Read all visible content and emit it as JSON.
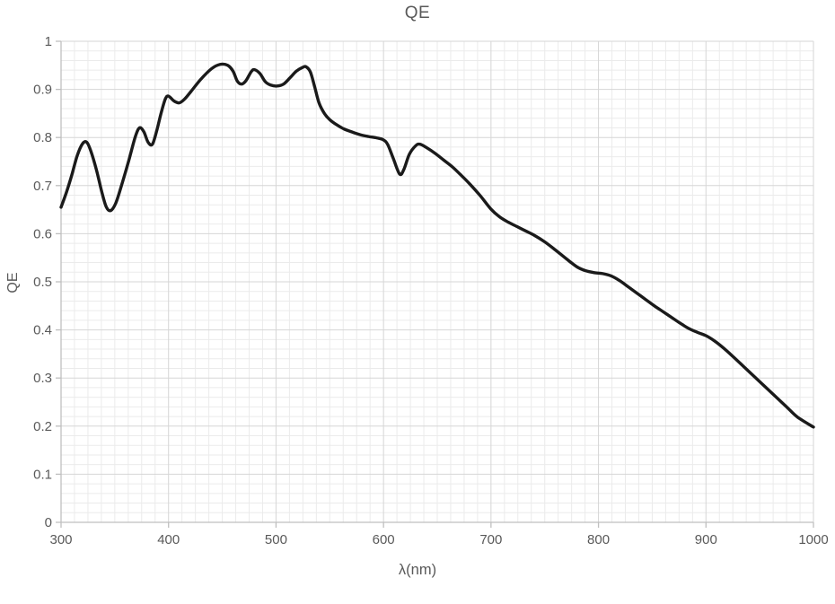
{
  "chart": {
    "title": "QE",
    "x_axis_title": "λ(nm)",
    "y_axis_title": "QE"
  },
  "colors": {
    "background": "#ffffff",
    "curve": "#1a1a1a",
    "grid_minor": "#ebebeb",
    "grid_major": "#d6d6d6",
    "axis_line": "#bfbfbf",
    "tick_text": "#595959"
  },
  "chart_data": {
    "type": "line",
    "title": "QE",
    "xlabel": "λ(nm)",
    "ylabel": "QE",
    "xlim": [
      300,
      1000
    ],
    "ylim": [
      0,
      1
    ],
    "grid": true,
    "legend": "none",
    "x_major_step": 100,
    "x_minor_step": 12.5,
    "y_major_step": 0.1,
    "y_minor_step": 0.02,
    "x_ticks": [
      300,
      400,
      500,
      600,
      700,
      800,
      900,
      1000
    ],
    "x_tick_labels": [
      "300",
      "400",
      "500",
      "600",
      "700",
      "800",
      "900",
      "1000"
    ],
    "y_ticks": [
      0,
      0.1,
      0.2,
      0.3,
      0.4,
      0.5,
      0.6,
      0.7,
      0.8,
      0.9,
      1
    ],
    "y_tick_labels": [
      "0",
      "0.1",
      "0.2",
      "0.3",
      "0.4",
      "0.5",
      "0.6",
      "0.7",
      "0.8",
      "0.9",
      "1"
    ],
    "series": [
      {
        "name": "QE",
        "x": [
          300,
          305,
          310,
          315,
          320,
          324,
          328,
          333,
          338,
          342,
          346,
          351,
          357,
          363,
          369,
          373,
          377,
          381,
          385,
          389,
          393,
          397,
          400,
          405,
          410,
          415,
          421,
          430,
          440,
          448,
          455,
          460,
          464,
          468,
          472,
          477,
          480,
          485,
          490,
          495,
          501,
          507,
          513,
          519,
          525,
          528,
          532,
          536,
          540,
          545,
          550,
          556,
          563,
          570,
          578,
          586,
          594,
          600,
          604,
          609,
          615,
          619,
          624,
          630,
          634,
          640,
          648,
          656,
          664,
          672,
          680,
          690,
          700,
          708,
          716,
          724,
          732,
          740,
          750,
          760,
          770,
          780,
          788,
          796,
          804,
          812,
          820,
          828,
          836,
          844,
          852,
          860,
          868,
          876,
          884,
          892,
          900,
          908,
          916,
          925,
          935,
          945,
          955,
          965,
          975,
          985,
          1000
        ],
        "y": [
          0.655,
          0.686,
          0.722,
          0.762,
          0.787,
          0.79,
          0.77,
          0.732,
          0.686,
          0.656,
          0.648,
          0.664,
          0.706,
          0.752,
          0.801,
          0.82,
          0.812,
          0.79,
          0.786,
          0.814,
          0.85,
          0.88,
          0.886,
          0.876,
          0.872,
          0.88,
          0.896,
          0.921,
          0.943,
          0.952,
          0.95,
          0.938,
          0.917,
          0.911,
          0.918,
          0.937,
          0.941,
          0.933,
          0.916,
          0.909,
          0.907,
          0.911,
          0.924,
          0.938,
          0.946,
          0.947,
          0.936,
          0.905,
          0.872,
          0.85,
          0.837,
          0.827,
          0.818,
          0.812,
          0.806,
          0.802,
          0.799,
          0.795,
          0.785,
          0.757,
          0.724,
          0.734,
          0.765,
          0.783,
          0.786,
          0.779,
          0.767,
          0.753,
          0.739,
          0.722,
          0.704,
          0.679,
          0.651,
          0.635,
          0.624,
          0.615,
          0.606,
          0.597,
          0.583,
          0.566,
          0.548,
          0.531,
          0.523,
          0.519,
          0.517,
          0.512,
          0.502,
          0.489,
          0.476,
          0.463,
          0.45,
          0.438,
          0.426,
          0.414,
          0.403,
          0.395,
          0.388,
          0.377,
          0.363,
          0.345,
          0.324,
          0.303,
          0.282,
          0.261,
          0.24,
          0.219,
          0.198
        ]
      }
    ]
  }
}
